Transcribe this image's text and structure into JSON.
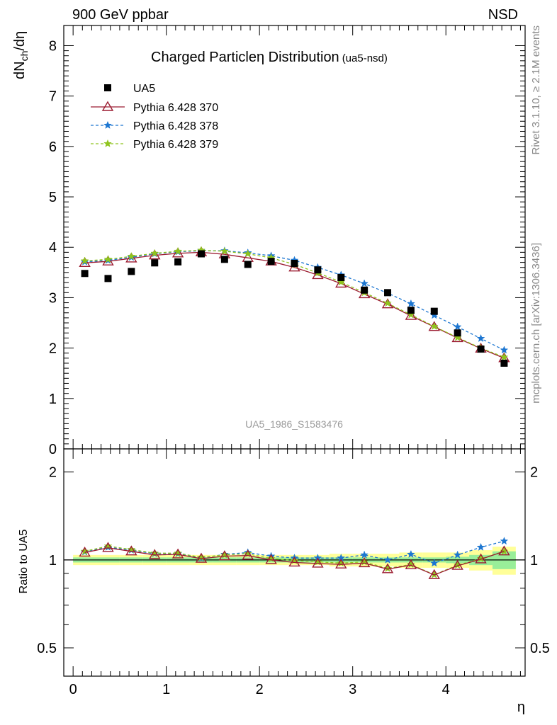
{
  "header": {
    "left": "900 GeV ppbar",
    "right": "NSD"
  },
  "side_labels": {
    "rivet": "Rivet 3.1.10, ≥ 2.1M events",
    "mcplots": "mcplots.cern.ch [arXiv:1306.3436]"
  },
  "chart_data": [
    {
      "type": "scatter",
      "title": "Charged Particleη Distribution",
      "subtitle": "(ua5-nsd)",
      "ylabel_main": "dN",
      "ylabel_sub": "ch",
      "ylabel_tail": "/dη",
      "watermark": "UA5_1986_S1583476",
      "xlim": [
        -0.1,
        4.85
      ],
      "ylim": [
        0,
        8.4
      ],
      "x_ticks": [
        "0",
        "1",
        "2",
        "3",
        "4"
      ],
      "y_ticks": [
        "0",
        "1",
        "2",
        "3",
        "4",
        "5",
        "6",
        "7",
        "8"
      ],
      "legend_position": "top-left",
      "x": [
        0.125,
        0.375,
        0.625,
        0.875,
        1.125,
        1.375,
        1.625,
        1.875,
        2.125,
        2.375,
        2.625,
        2.875,
        3.125,
        3.375,
        3.625,
        3.875,
        4.125,
        4.375,
        4.625
      ],
      "series": [
        {
          "name": "UA5",
          "marker": "square",
          "color": "#000000",
          "line": "none",
          "values": [
            3.48,
            3.38,
            3.52,
            3.69,
            3.71,
            3.87,
            3.76,
            3.66,
            3.72,
            3.68,
            3.55,
            3.4,
            3.15,
            3.1,
            2.75,
            2.73,
            2.3,
            1.98,
            1.7
          ]
        },
        {
          "name": "Pythia 6.428 370",
          "marker": "triangle",
          "color": "#9b1b30",
          "line": "solid",
          "values": [
            3.69,
            3.72,
            3.78,
            3.84,
            3.88,
            3.9,
            3.86,
            3.79,
            3.72,
            3.6,
            3.45,
            3.28,
            3.07,
            2.87,
            2.64,
            2.42,
            2.2,
            1.99,
            1.8
          ]
        },
        {
          "name": "Pythia 6.428 378",
          "marker": "star",
          "color": "#1c76d1",
          "line": "dashed",
          "values": [
            3.71,
            3.74,
            3.8,
            3.87,
            3.91,
            3.93,
            3.93,
            3.89,
            3.83,
            3.74,
            3.6,
            3.45,
            3.28,
            3.09,
            2.88,
            2.65,
            2.42,
            2.19,
            1.96
          ]
        },
        {
          "name": "Pythia 6.428 379",
          "marker": "star",
          "color": "#8fc41d",
          "line": "dashed",
          "values": [
            3.73,
            3.76,
            3.82,
            3.88,
            3.92,
            3.94,
            3.92,
            3.87,
            3.79,
            3.66,
            3.49,
            3.31,
            3.1,
            2.89,
            2.66,
            2.43,
            2.21,
            2.0,
            1.82
          ]
        }
      ]
    },
    {
      "type": "line",
      "ylabel": "Ratio to UA5",
      "xlabel": "η",
      "xlim": [
        -0.1,
        4.85
      ],
      "ylim": [
        0.4,
        2.4
      ],
      "y_scale": "log",
      "x_ticks": [
        "0",
        "1",
        "2",
        "3",
        "4"
      ],
      "y_ticks": [
        "0.5",
        "1",
        "2"
      ],
      "x": [
        0.125,
        0.375,
        0.625,
        0.875,
        1.125,
        1.375,
        1.625,
        1.875,
        2.125,
        2.375,
        2.625,
        2.875,
        3.125,
        3.375,
        3.625,
        3.875,
        4.125,
        4.375,
        4.625
      ],
      "band_stat": [
        0.02,
        0.02,
        0.02,
        0.02,
        0.02,
        0.02,
        0.02,
        0.02,
        0.02,
        0.02,
        0.02,
        0.02,
        0.02,
        0.02,
        0.02,
        0.02,
        0.025,
        0.04,
        0.07
      ],
      "band_total": [
        0.04,
        0.04,
        0.04,
        0.04,
        0.04,
        0.04,
        0.04,
        0.04,
        0.04,
        0.04,
        0.04,
        0.05,
        0.05,
        0.05,
        0.06,
        0.06,
        0.06,
        0.08,
        0.11
      ],
      "series": [
        {
          "name": "Pythia 6.428 370",
          "color": "#9b1b30",
          "values": [
            1.06,
            1.1,
            1.07,
            1.04,
            1.045,
            1.01,
            1.03,
            1.035,
            1.0,
            0.98,
            0.972,
            0.965,
            0.975,
            0.93,
            0.96,
            0.888,
            0.955,
            1.005,
            1.07
          ]
        },
        {
          "name": "Pythia 6.428 378",
          "color": "#1c76d1",
          "values": [
            1.065,
            1.105,
            1.08,
            1.05,
            1.05,
            1.015,
            1.045,
            1.06,
            1.03,
            1.015,
            1.015,
            1.015,
            1.04,
            1.0,
            1.045,
            0.975,
            1.04,
            1.105,
            1.16
          ]
        },
        {
          "name": "Pythia 6.428 379",
          "color": "#8fc41d",
          "values": [
            1.07,
            1.115,
            1.085,
            1.055,
            1.055,
            1.02,
            1.04,
            1.05,
            1.01,
            0.995,
            0.985,
            0.975,
            0.985,
            0.935,
            0.965,
            0.89,
            0.96,
            1.01,
            1.07
          ]
        }
      ]
    }
  ]
}
